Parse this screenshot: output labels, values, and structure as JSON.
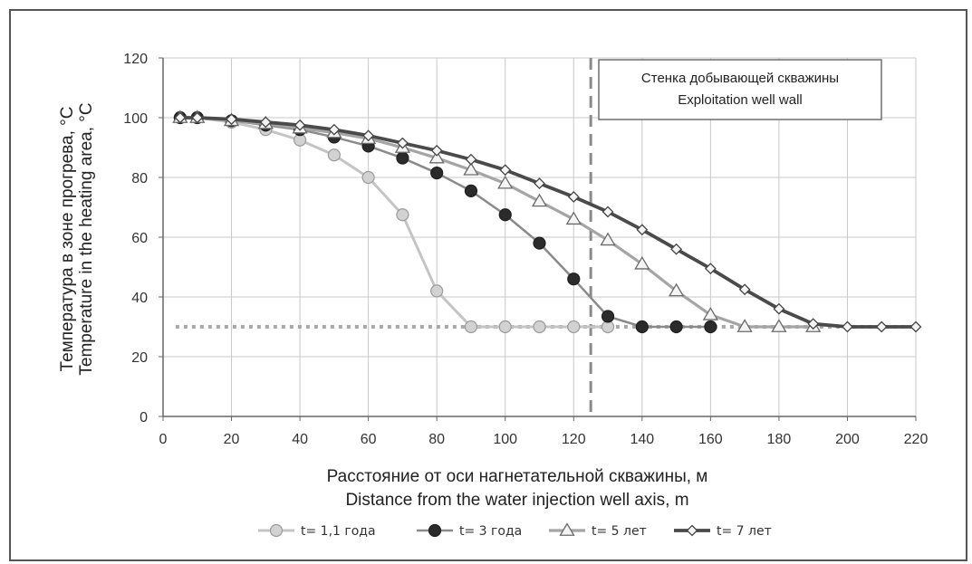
{
  "chart_data": {
    "type": "line",
    "title": "",
    "xlabel_ru": "Расстояние от оси нагнетательной скважины, м",
    "xlabel_en": "Distance from the water injection well axis, m",
    "ylabel_ru": "Температура в зоне прогрева, °C",
    "ylabel_en": "Temperature in the heating area, °C",
    "xlim": [
      0,
      220
    ],
    "ylim": [
      0,
      120
    ],
    "xticks": [
      0,
      20,
      40,
      60,
      80,
      100,
      120,
      140,
      160,
      180,
      200,
      220
    ],
    "yticks": [
      0,
      20,
      40,
      60,
      80,
      100,
      120
    ],
    "grid": true,
    "legend_position": "bottom",
    "annotation_ru": "Стенка добывающей скважины",
    "annotation_en": "Exploitation well wall",
    "well_wall_x": 125,
    "baseline_y": 30,
    "series": [
      {
        "name": "t= 1,1 года",
        "marker": "circle",
        "color": "#c4c4c4",
        "marker_fill": "#d2d2d2",
        "x": [
          5,
          10,
          20,
          30,
          40,
          50,
          60,
          70,
          80,
          90,
          100,
          110,
          120,
          130
        ],
        "y": [
          100,
          100,
          98.5,
          96,
          92.5,
          87.5,
          80,
          67.5,
          42,
          30,
          30,
          30,
          30,
          30
        ]
      },
      {
        "name": "t= 3 года",
        "marker": "circle",
        "color": "#8a8a8a",
        "marker_fill": "#2b2b2b",
        "x": [
          5,
          10,
          20,
          30,
          40,
          50,
          60,
          70,
          80,
          90,
          100,
          110,
          120,
          130,
          140,
          150,
          160
        ],
        "y": [
          100,
          100,
          99,
          97.5,
          96,
          93.5,
          90.5,
          86.5,
          81.5,
          75.5,
          67.5,
          58,
          46,
          33.5,
          30,
          30,
          30
        ]
      },
      {
        "name": "t= 5 лет",
        "marker": "triangle",
        "color": "#a5a5a5",
        "marker_fill": "#f4f4f4",
        "x": [
          5,
          10,
          20,
          30,
          40,
          50,
          60,
          70,
          80,
          90,
          100,
          110,
          120,
          130,
          140,
          150,
          160,
          170,
          180,
          190
        ],
        "y": [
          100,
          100,
          99,
          98,
          96.5,
          95,
          93,
          90,
          86.5,
          82.5,
          78,
          72,
          66,
          59,
          51,
          42,
          34,
          30,
          30,
          30
        ]
      },
      {
        "name": "t= 7 лет",
        "marker": "diamond",
        "color": "#4a4a4a",
        "marker_fill": "#f4f4f4",
        "x": [
          5,
          10,
          20,
          30,
          40,
          50,
          60,
          70,
          80,
          90,
          100,
          110,
          120,
          130,
          140,
          150,
          160,
          170,
          180,
          190,
          200,
          210,
          220
        ],
        "y": [
          100,
          100,
          99.5,
          98.5,
          97.5,
          96,
          94,
          91.5,
          89,
          86,
          82.5,
          78,
          73.5,
          68.5,
          62.5,
          56,
          49.5,
          42.5,
          36,
          31,
          30,
          30,
          30
        ]
      }
    ]
  }
}
